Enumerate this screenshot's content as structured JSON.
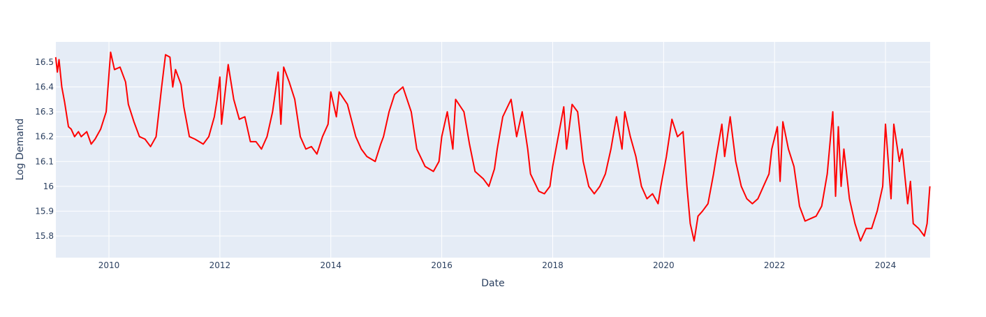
{
  "chart_data": {
    "type": "line",
    "x_label": "Date",
    "y_label": "Log Demand",
    "x": [
      2009.04,
      2009.07,
      2009.1,
      2009.15,
      2009.2,
      2009.27,
      2009.32,
      2009.38,
      2009.45,
      2009.5,
      2009.6,
      2009.68,
      2009.75,
      2009.85,
      2009.95,
      2010.03,
      2010.1,
      2010.2,
      2010.3,
      2010.35,
      2010.45,
      2010.55,
      2010.65,
      2010.75,
      2010.85,
      2010.9,
      2010.95,
      2011.02,
      2011.1,
      2011.15,
      2011.2,
      2011.3,
      2011.35,
      2011.45,
      2011.55,
      2011.7,
      2011.8,
      2011.9,
      2011.95,
      2012.0,
      2012.03,
      2012.15,
      2012.25,
      2012.35,
      2012.45,
      2012.55,
      2012.65,
      2012.75,
      2012.85,
      2012.95,
      2013.05,
      2013.1,
      2013.15,
      2013.25,
      2013.35,
      2013.45,
      2013.55,
      2013.65,
      2013.75,
      2013.85,
      2013.95,
      2014.0,
      2014.1,
      2014.15,
      2014.3,
      2014.45,
      2014.55,
      2014.65,
      2014.8,
      2014.9,
      2014.95,
      2015.05,
      2015.15,
      2015.3,
      2015.45,
      2015.55,
      2015.7,
      2015.85,
      2015.95,
      2016.0,
      2016.1,
      2016.2,
      2016.25,
      2016.4,
      2016.5,
      2016.6,
      2016.75,
      2016.85,
      2016.95,
      2017.0,
      2017.1,
      2017.25,
      2017.35,
      2017.45,
      2017.55,
      2017.6,
      2017.75,
      2017.85,
      2017.95,
      2018.0,
      2018.1,
      2018.2,
      2018.25,
      2018.35,
      2018.45,
      2018.55,
      2018.65,
      2018.75,
      2018.85,
      2018.95,
      2019.05,
      2019.15,
      2019.25,
      2019.3,
      2019.4,
      2019.5,
      2019.6,
      2019.7,
      2019.8,
      2019.9,
      2019.95,
      2020.05,
      2020.15,
      2020.25,
      2020.35,
      2020.42,
      2020.48,
      2020.55,
      2020.62,
      2020.7,
      2020.8,
      2020.9,
      2020.95,
      2021.05,
      2021.1,
      2021.2,
      2021.3,
      2021.4,
      2021.5,
      2021.6,
      2021.7,
      2021.8,
      2021.9,
      2021.95,
      2022.05,
      2022.1,
      2022.15,
      2022.25,
      2022.35,
      2022.45,
      2022.55,
      2022.65,
      2022.75,
      2022.85,
      2022.95,
      2023.05,
      2023.1,
      2023.15,
      2023.2,
      2023.25,
      2023.35,
      2023.45,
      2023.55,
      2023.65,
      2023.75,
      2023.85,
      2023.95,
      2024.0,
      2024.1,
      2024.15,
      2024.25,
      2024.3,
      2024.4,
      2024.45,
      2024.5,
      2024.6,
      2024.7,
      2024.75,
      2024.8
    ],
    "series": [
      {
        "name": "Log Demand",
        "color": "#ff0000",
        "values": [
          16.52,
          16.46,
          16.51,
          16.4,
          16.34,
          16.24,
          16.23,
          16.2,
          16.22,
          16.2,
          16.22,
          16.17,
          16.19,
          16.23,
          16.3,
          16.54,
          16.47,
          16.48,
          16.42,
          16.33,
          16.26,
          16.2,
          16.19,
          16.16,
          16.2,
          16.3,
          16.4,
          16.53,
          16.52,
          16.4,
          16.47,
          16.41,
          16.32,
          16.2,
          16.19,
          16.17,
          16.2,
          16.28,
          16.35,
          16.44,
          16.25,
          16.49,
          16.35,
          16.27,
          16.28,
          16.18,
          16.18,
          16.15,
          16.2,
          16.3,
          16.46,
          16.25,
          16.48,
          16.42,
          16.35,
          16.2,
          16.15,
          16.16,
          16.13,
          16.2,
          16.25,
          16.38,
          16.28,
          16.38,
          16.33,
          16.2,
          16.15,
          16.12,
          16.1,
          16.17,
          16.2,
          16.3,
          16.37,
          16.4,
          16.3,
          16.15,
          16.08,
          16.06,
          16.1,
          16.2,
          16.3,
          16.15,
          16.35,
          16.3,
          16.17,
          16.06,
          16.03,
          16.0,
          16.07,
          16.15,
          16.28,
          16.35,
          16.2,
          16.3,
          16.15,
          16.05,
          15.98,
          15.97,
          16.0,
          16.08,
          16.2,
          16.32,
          16.15,
          16.33,
          16.3,
          16.1,
          16.0,
          15.97,
          16.0,
          16.05,
          16.15,
          16.28,
          16.15,
          16.3,
          16.2,
          16.12,
          16.0,
          15.95,
          15.97,
          15.93,
          16.0,
          16.12,
          16.27,
          16.2,
          16.22,
          16.0,
          15.85,
          15.78,
          15.88,
          15.9,
          15.93,
          16.05,
          16.12,
          16.25,
          16.12,
          16.28,
          16.1,
          16.0,
          15.95,
          15.93,
          15.95,
          16.0,
          16.05,
          16.15,
          16.24,
          16.02,
          16.26,
          16.15,
          16.08,
          15.92,
          15.86,
          15.87,
          15.88,
          15.92,
          16.05,
          16.3,
          15.96,
          16.24,
          16.0,
          16.15,
          15.95,
          15.85,
          15.78,
          15.83,
          15.83,
          15.9,
          16.0,
          16.25,
          15.95,
          16.25,
          16.1,
          16.15,
          15.93,
          16.02,
          15.85,
          15.83,
          15.8,
          15.85,
          16.0
        ]
      }
    ],
    "xlim": [
      2009.043,
      2024.805
    ],
    "ylim": [
      15.7128,
      16.5815
    ],
    "xticks": [
      2010,
      2012,
      2014,
      2016,
      2018,
      2020,
      2022,
      2024
    ],
    "yticks": [
      15.8,
      15.9,
      16,
      16.1,
      16.2,
      16.3,
      16.4,
      16.5
    ],
    "grid": true
  }
}
